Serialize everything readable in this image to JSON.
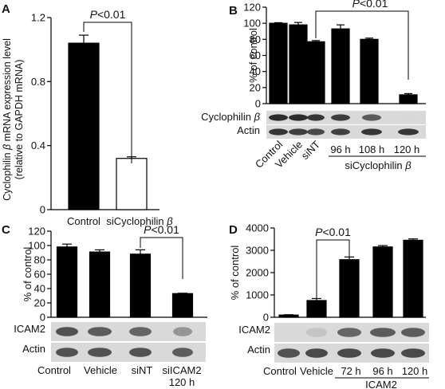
{
  "panel_letters": [
    "A",
    "B",
    "C",
    "D"
  ],
  "chart_data": [
    {
      "panel": "A",
      "type": "bar",
      "categories": [
        "Control",
        "siCyclophilin β"
      ],
      "values": [
        1.04,
        0.32
      ],
      "errors": [
        0.05,
        0.01
      ],
      "bar_fills": [
        "#000000",
        "#ffffff"
      ],
      "ylabel": "Cyclophilin β mRNA expression level",
      "ylabel2": "(relative to GAPDH mRNA)",
      "ylim": [
        0,
        1.2
      ],
      "yticks": [
        "0",
        "0.4",
        "0.8",
        "1.2"
      ],
      "significance": "P<0.01"
    },
    {
      "panel": "B",
      "type": "bar",
      "categories": [
        "Control",
        "Vehicle",
        "siNT",
        "96 h",
        "108 h",
        "120 h"
      ],
      "values": [
        100,
        98,
        77,
        93,
        80,
        11
      ],
      "errors": [
        0.7,
        3,
        1.5,
        5,
        1.5,
        1.5
      ],
      "group_label": "siCyclophilin β",
      "ylabel": "% of control",
      "ylim": [
        0,
        120
      ],
      "yticks": [
        "0",
        "20",
        "40",
        "60",
        "80",
        "100",
        "120"
      ],
      "blot_labels": [
        "Cyclophilin β",
        "Actin"
      ],
      "significance": "P<0.01"
    },
    {
      "panel": "C",
      "type": "bar",
      "categories": [
        "Control",
        "Vehicle",
        "siNT",
        "siICAM2\n120 h"
      ],
      "values": [
        98,
        91,
        88,
        33
      ],
      "errors": [
        4,
        3,
        6,
        0.5
      ],
      "ylabel": "% of control",
      "ylim": [
        0,
        120
      ],
      "yticks": [
        "0",
        "20",
        "40",
        "60",
        "80",
        "100",
        "120"
      ],
      "blot_labels": [
        "ICAM2",
        "Actin"
      ],
      "significance": "P<0.01"
    },
    {
      "panel": "D",
      "type": "bar",
      "categories": [
        "Control",
        "Vehicle",
        "72 h",
        "96 h",
        "120 h"
      ],
      "values": [
        100,
        750,
        2580,
        3150,
        3450
      ],
      "errors": [
        15,
        90,
        120,
        60,
        60
      ],
      "group_label": "ICAM2",
      "ylabel": "% of control",
      "ylim": [
        0,
        4000
      ],
      "yticks": [
        "0",
        "1000",
        "2000",
        "3000",
        "4000"
      ],
      "blot_labels": [
        "ICAM2",
        "Actin"
      ],
      "significance": "P<0.01"
    }
  ]
}
